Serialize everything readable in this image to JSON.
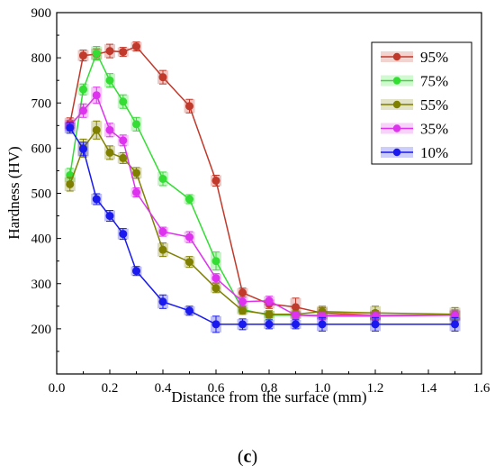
{
  "caption": {
    "open": "(",
    "letter": "c",
    "close": ")"
  },
  "chart_data": {
    "type": "line",
    "xlabel": "Distance from the surface (mm)",
    "ylabel": "Hardness (HV)",
    "xlim": [
      0,
      1.6
    ],
    "ylim": [
      100,
      900
    ],
    "xticks": [
      0.0,
      0.2,
      0.4,
      0.6,
      0.8,
      1.0,
      1.2,
      1.4,
      1.6
    ],
    "xtick_labels": [
      "0.0",
      "0.2",
      "0.4",
      "0.6",
      "0.8",
      "1.0",
      "1.2",
      "1.4",
      "1.6"
    ],
    "yticks": [
      200,
      300,
      400,
      500,
      600,
      700,
      800,
      900
    ],
    "ytick_labels": [
      "200",
      "300",
      "400",
      "500",
      "600",
      "700",
      "800",
      "900"
    ],
    "grid": false,
    "legend_position": "top-right",
    "series": [
      {
        "name": "95%",
        "color": "#c0392b",
        "x": [
          0.05,
          0.1,
          0.15,
          0.2,
          0.25,
          0.3,
          0.4,
          0.5,
          0.6,
          0.7,
          0.8,
          0.9,
          1.0,
          1.2,
          1.5
        ],
        "y": [
          655,
          805,
          808,
          815,
          813,
          825,
          757,
          693,
          528,
          280,
          255,
          248,
          235,
          230,
          230
        ],
        "err": [
          12,
          12,
          12,
          15,
          10,
          10,
          15,
          15,
          12,
          10,
          10,
          20,
          12,
          10,
          10
        ]
      },
      {
        "name": "75%",
        "color": "#33dd33",
        "x": [
          0.05,
          0.1,
          0.15,
          0.2,
          0.25,
          0.3,
          0.4,
          0.5,
          0.6,
          0.7,
          0.8,
          0.9,
          1.0,
          1.2,
          1.5
        ],
        "y": [
          540,
          730,
          810,
          750,
          703,
          653,
          532,
          487,
          350,
          243,
          230,
          230,
          230,
          230,
          230
        ],
        "err": [
          15,
          12,
          15,
          15,
          15,
          15,
          15,
          10,
          20,
          8,
          10,
          8,
          8,
          8,
          10
        ]
      },
      {
        "name": "55%",
        "color": "#808000",
        "x": [
          0.05,
          0.1,
          0.15,
          0.2,
          0.25,
          0.3,
          0.4,
          0.5,
          0.6,
          0.7,
          0.8,
          0.9,
          1.0,
          1.2,
          1.5
        ],
        "y": [
          520,
          600,
          640,
          590,
          578,
          545,
          375,
          348,
          290,
          240,
          232,
          232,
          238,
          235,
          232
        ],
        "err": [
          15,
          20,
          20,
          15,
          12,
          12,
          15,
          12,
          10,
          8,
          8,
          8,
          12,
          15,
          15
        ]
      },
      {
        "name": "35%",
        "color": "#dd33ee",
        "x": [
          0.05,
          0.1,
          0.15,
          0.2,
          0.25,
          0.3,
          0.4,
          0.5,
          0.6,
          0.7,
          0.8,
          0.9,
          1.0,
          1.2,
          1.5
        ],
        "y": [
          650,
          683,
          717,
          640,
          617,
          502,
          415,
          403,
          312,
          260,
          262,
          230,
          228,
          228,
          230
        ],
        "err": [
          12,
          15,
          18,
          15,
          12,
          10,
          10,
          12,
          10,
          10,
          10,
          8,
          8,
          10,
          12
        ]
      },
      {
        "name": "10%",
        "color": "#1a1aee",
        "x": [
          0.05,
          0.1,
          0.15,
          0.2,
          0.25,
          0.3,
          0.4,
          0.5,
          0.6,
          0.7,
          0.8,
          0.9,
          1.0,
          1.2,
          1.5
        ],
        "y": [
          645,
          598,
          487,
          450,
          410,
          328,
          260,
          240,
          210,
          210,
          210,
          210,
          210,
          210,
          210
        ],
        "err": [
          12,
          15,
          12,
          12,
          12,
          10,
          15,
          10,
          18,
          12,
          10,
          10,
          15,
          15,
          15
        ]
      }
    ]
  }
}
